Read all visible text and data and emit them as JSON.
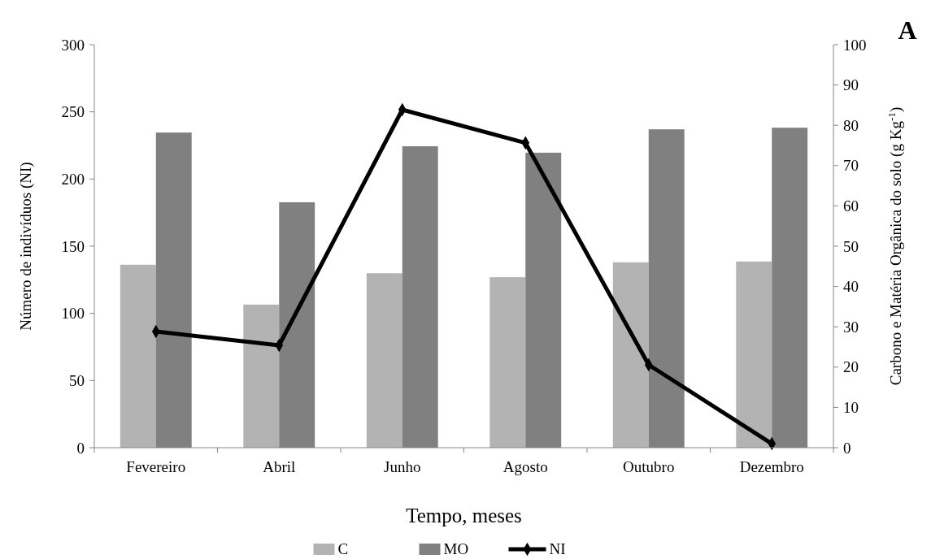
{
  "chart_data": {
    "type": "bar",
    "xlabel": "Tempo, meses",
    "ylabel": "Número de indivíduos (NI)",
    "y2label": "Carbono e Matéria Orgânica do solo (g Kg$^{-1}$)",
    "annotations": [
      "A"
    ],
    "categories": [
      "Fevereiro",
      "Abril",
      "Junho",
      "Agosto",
      "Outubro",
      "Dezembro"
    ],
    "series": [
      {
        "name": "C",
        "color": "#b3b3b3",
        "axis": "y2",
        "values": [
          45.4,
          35.5,
          43.3,
          42.3,
          46,
          46.2
        ]
      },
      {
        "name": "MO",
        "color": "#808080",
        "axis": "y2",
        "values": [
          78.2,
          60.9,
          74.8,
          73.2,
          79,
          79.4
        ]
      },
      {
        "name": "NI",
        "type": "line",
        "color": "#000000",
        "marker": "diamond",
        "values": [
          86.5,
          76.2,
          251.6,
          226.9,
          61.7,
          3
        ]
      }
    ],
    "ylim": [
      0,
      300
    ],
    "yticks": [
      0,
      50,
      100,
      150,
      200,
      250,
      300
    ],
    "y2lim": [
      0,
      100
    ],
    "y2ticks": [
      0,
      10,
      20,
      30,
      40,
      50,
      60,
      70,
      80,
      90,
      100
    ],
    "legend": "bottom",
    "grid": false
  }
}
